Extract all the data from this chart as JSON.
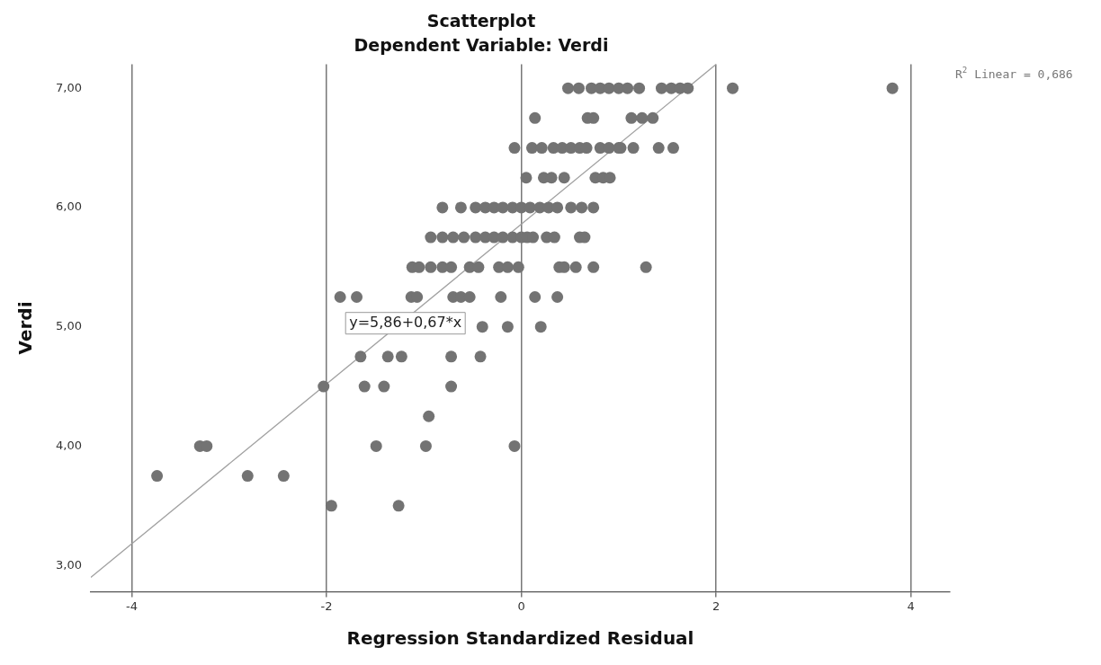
{
  "chart_data": {
    "type": "scatter",
    "title": "Scatterplot",
    "subtitle": "Dependent Variable: Verdi",
    "xlabel": "Regression Standardized Residual",
    "ylabel": "Verdi",
    "xlim": [
      -4.42,
      4.4
    ],
    "xticks": [
      -4,
      -2,
      0,
      2,
      4
    ],
    "ylim": [
      2.78,
      7.2
    ],
    "yticks": [
      {
        "value": 3,
        "label": "3,00"
      },
      {
        "value": 4,
        "label": "4,00"
      },
      {
        "value": 5,
        "label": "5,00"
      },
      {
        "value": 6,
        "label": "6,00"
      },
      {
        "value": 7,
        "label": "7,00"
      }
    ],
    "grid": "x",
    "legend": false,
    "marker": "circle",
    "series": [
      {
        "color": "#737373",
        "x": [
          0.48,
          0.59,
          0.72,
          0.81,
          0.9,
          1.0,
          1.09,
          1.21,
          1.44,
          1.54,
          1.63,
          1.71,
          2.17,
          3.81,
          0.14,
          0.68,
          0.74,
          1.13,
          1.24,
          1.35,
          -0.07,
          0.11,
          0.21,
          0.33,
          0.42,
          0.51,
          0.6,
          0.67,
          0.81,
          0.9,
          1.0,
          1.02,
          1.15,
          1.41,
          1.56,
          0.05,
          0.23,
          0.31,
          0.44,
          0.76,
          0.84,
          0.91,
          -0.81,
          -0.62,
          -0.47,
          -0.37,
          -0.28,
          -0.19,
          -0.09,
          0.0,
          0.09,
          0.19,
          0.28,
          0.37,
          0.51,
          0.62,
          0.74,
          -0.93,
          -0.81,
          -0.7,
          -0.59,
          -0.47,
          -0.37,
          -0.28,
          -0.19,
          -0.09,
          0.0,
          0.06,
          0.12,
          0.26,
          0.34,
          0.6,
          0.65,
          -1.12,
          -1.05,
          -0.93,
          -0.81,
          -0.72,
          -0.53,
          -0.44,
          -0.23,
          -0.14,
          -0.03,
          0.39,
          0.44,
          0.56,
          0.74,
          1.28,
          -1.86,
          -1.69,
          -1.13,
          -1.07,
          -0.7,
          -0.62,
          -0.53,
          -0.21,
          0.14,
          0.37,
          -0.4,
          -0.14,
          0.2,
          -1.65,
          -1.37,
          -1.23,
          -0.72,
          -0.42,
          -2.03,
          -1.61,
          -1.41,
          -0.72,
          -0.95,
          -3.3,
          -3.23,
          -1.49,
          -0.98,
          -0.07,
          -3.74,
          -2.81,
          -2.44,
          -1.95,
          -1.26
        ],
        "values": [
          7,
          7,
          7,
          7,
          7,
          7,
          7,
          7,
          7,
          7,
          7,
          7,
          7,
          7,
          6.75,
          6.75,
          6.75,
          6.75,
          6.75,
          6.75,
          6.5,
          6.5,
          6.5,
          6.5,
          6.5,
          6.5,
          6.5,
          6.5,
          6.5,
          6.5,
          6.5,
          6.5,
          6.5,
          6.5,
          6.5,
          6.25,
          6.25,
          6.25,
          6.25,
          6.25,
          6.25,
          6.25,
          6,
          6,
          6,
          6,
          6,
          6,
          6,
          6,
          6,
          6,
          6,
          6,
          6,
          6,
          6,
          5.75,
          5.75,
          5.75,
          5.75,
          5.75,
          5.75,
          5.75,
          5.75,
          5.75,
          5.75,
          5.75,
          5.75,
          5.75,
          5.75,
          5.75,
          5.75,
          5.5,
          5.5,
          5.5,
          5.5,
          5.5,
          5.5,
          5.5,
          5.5,
          5.5,
          5.5,
          5.5,
          5.5,
          5.5,
          5.5,
          5.5,
          5.25,
          5.25,
          5.25,
          5.25,
          5.25,
          5.25,
          5.25,
          5.25,
          5.25,
          5.25,
          5,
          5,
          5,
          4.75,
          4.75,
          4.75,
          4.75,
          4.75,
          4.5,
          4.5,
          4.5,
          4.5,
          4.25,
          4,
          4,
          4,
          4,
          4,
          3.75,
          3.75,
          3.75,
          3.5,
          3.5
        ]
      },
      {
        "type": "line",
        "color": "#a0a0a0",
        "marker": "none",
        "x": [
          -4.42,
          2.0
        ],
        "values": [
          2.9,
          7.2
        ]
      }
    ],
    "annotations": [
      {
        "text": "y=5,86+0,67*x",
        "x": -1.19,
        "y": 5.03
      },
      "R$^{2}$ Linear = 0,686"
    ]
  }
}
